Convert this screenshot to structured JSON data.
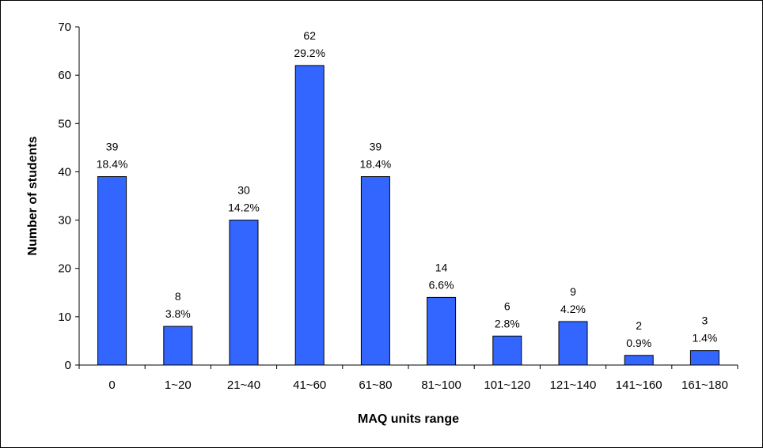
{
  "chart_data": {
    "type": "bar",
    "xlabel": "MAQ units range",
    "ylabel": "Number of students",
    "ylim": [
      0,
      70
    ],
    "yticks": [
      0,
      10,
      20,
      30,
      40,
      50,
      60,
      70
    ],
    "categories": [
      "0",
      "1~20",
      "21~40",
      "41~60",
      "61~80",
      "81~100",
      "101~120",
      "121~140",
      "141~160",
      "161~180"
    ],
    "values": [
      39,
      8,
      30,
      62,
      39,
      14,
      6,
      9,
      2,
      3
    ],
    "percent_labels": [
      "18.4%",
      "3.8%",
      "14.2%",
      "29.2%",
      "18.4%",
      "6.6%",
      "2.8%",
      "4.2%",
      "0.9%",
      "1.4%"
    ],
    "bar_color": "#3366FF",
    "bar_edge_color": "#000000",
    "grid": false,
    "legend": "none"
  }
}
